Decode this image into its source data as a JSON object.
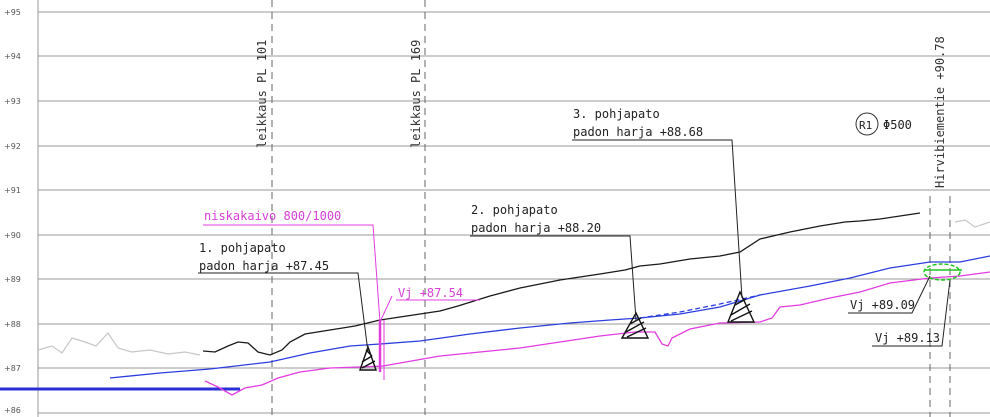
{
  "colors": {
    "grid": "#9a9a9a",
    "terrain": "#1a1a1a",
    "waterline": "#2c3ee0",
    "bottom": "#e23ce0",
    "ghost": "#c8c8c8",
    "green": "#21c421",
    "bottom_fill": "#2b2fd6"
  },
  "y_ticks": [
    "+95",
    "+94",
    "+93",
    "+92",
    "+91",
    "+90",
    "+89",
    "+88",
    "+87",
    "+86"
  ],
  "sections": [
    {
      "label": "leikkaus PL 101"
    },
    {
      "label": "leikkaus PL 169"
    },
    {
      "label": "Hirvibiementie +90.78"
    }
  ],
  "annotations": {
    "niskakaivo": "niskakaivo 800/1000",
    "dam1_title": "1. pohjapato",
    "dam1_crest": "padon harja +87.45",
    "vj1": "Vj +87.54",
    "dam2_title": "2. pohjapato",
    "dam2_crest": "padon harja +88.20",
    "dam3_title": "3. pohjapato",
    "dam3_crest": "padon harja +88.68",
    "r1": "R1",
    "pipe": "Φ500",
    "vj2": "Vj +89.09",
    "vj3": "Vj +89.13"
  }
}
